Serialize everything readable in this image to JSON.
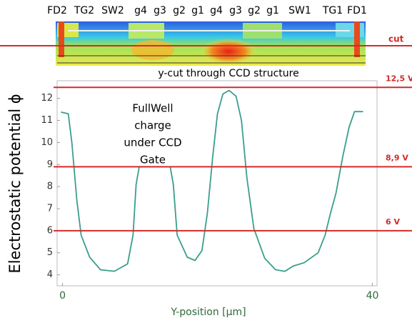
{
  "structure": {
    "gates": [
      "FD2",
      "TG2",
      "SW2",
      "g4",
      "g3",
      "g2",
      "g1",
      "g4",
      "g3",
      "g2",
      "g1",
      "SW1",
      "TG1",
      "FD1"
    ],
    "cut_label": "cut"
  },
  "chart_data": {
    "type": "line",
    "title": "y-cut through CCD structure",
    "x_label": "Y-position [µm]",
    "y_label": "Electrostatic potential ϕ",
    "annotation": [
      "FullWell",
      "charge",
      "under CCD",
      "Gate"
    ],
    "color": "#3a9e8c",
    "x": [
      -0.2,
      0.74,
      1.2,
      1.84,
      2.4,
      3.5,
      4.9,
      6.7,
      8.4,
      9.1,
      9.5,
      9.9,
      13.9,
      14.3,
      14.8,
      16.1,
      17.1,
      18.0,
      18.7,
      19.4,
      20.0,
      20.7,
      21.5,
      22.4,
      23.1,
      23.8,
      24.7,
      26.1,
      27.5,
      28.7,
      29.8,
      31.2,
      33.0,
      33.9,
      34.6,
      35.3,
      36.2,
      37.0,
      37.7,
      38.8
    ],
    "values": [
      11.38,
      11.3,
      10.0,
      7.4,
      5.8,
      4.8,
      4.23,
      4.16,
      4.5,
      5.8,
      8.1,
      8.9,
      8.9,
      8.1,
      5.8,
      4.8,
      4.65,
      5.1,
      6.8,
      9.4,
      11.3,
      12.2,
      12.36,
      12.1,
      11.0,
      8.4,
      6.1,
      4.75,
      4.23,
      4.16,
      4.4,
      4.55,
      5.0,
      5.8,
      6.8,
      7.7,
      9.4,
      10.7,
      11.4,
      11.4
    ],
    "hlines": {
      "color": "#d42a2a",
      "values": [
        12.5,
        8.9,
        6
      ],
      "value_labels": [
        "12,5 V",
        "8,9 V",
        "6 V"
      ]
    },
    "xlim": [
      -0.7,
      40.6
    ],
    "ylim": [
      3.5,
      12.8
    ],
    "xticks": [
      0,
      40
    ],
    "yticks": [
      4,
      5,
      6,
      7,
      8,
      9,
      10,
      11,
      12
    ]
  }
}
